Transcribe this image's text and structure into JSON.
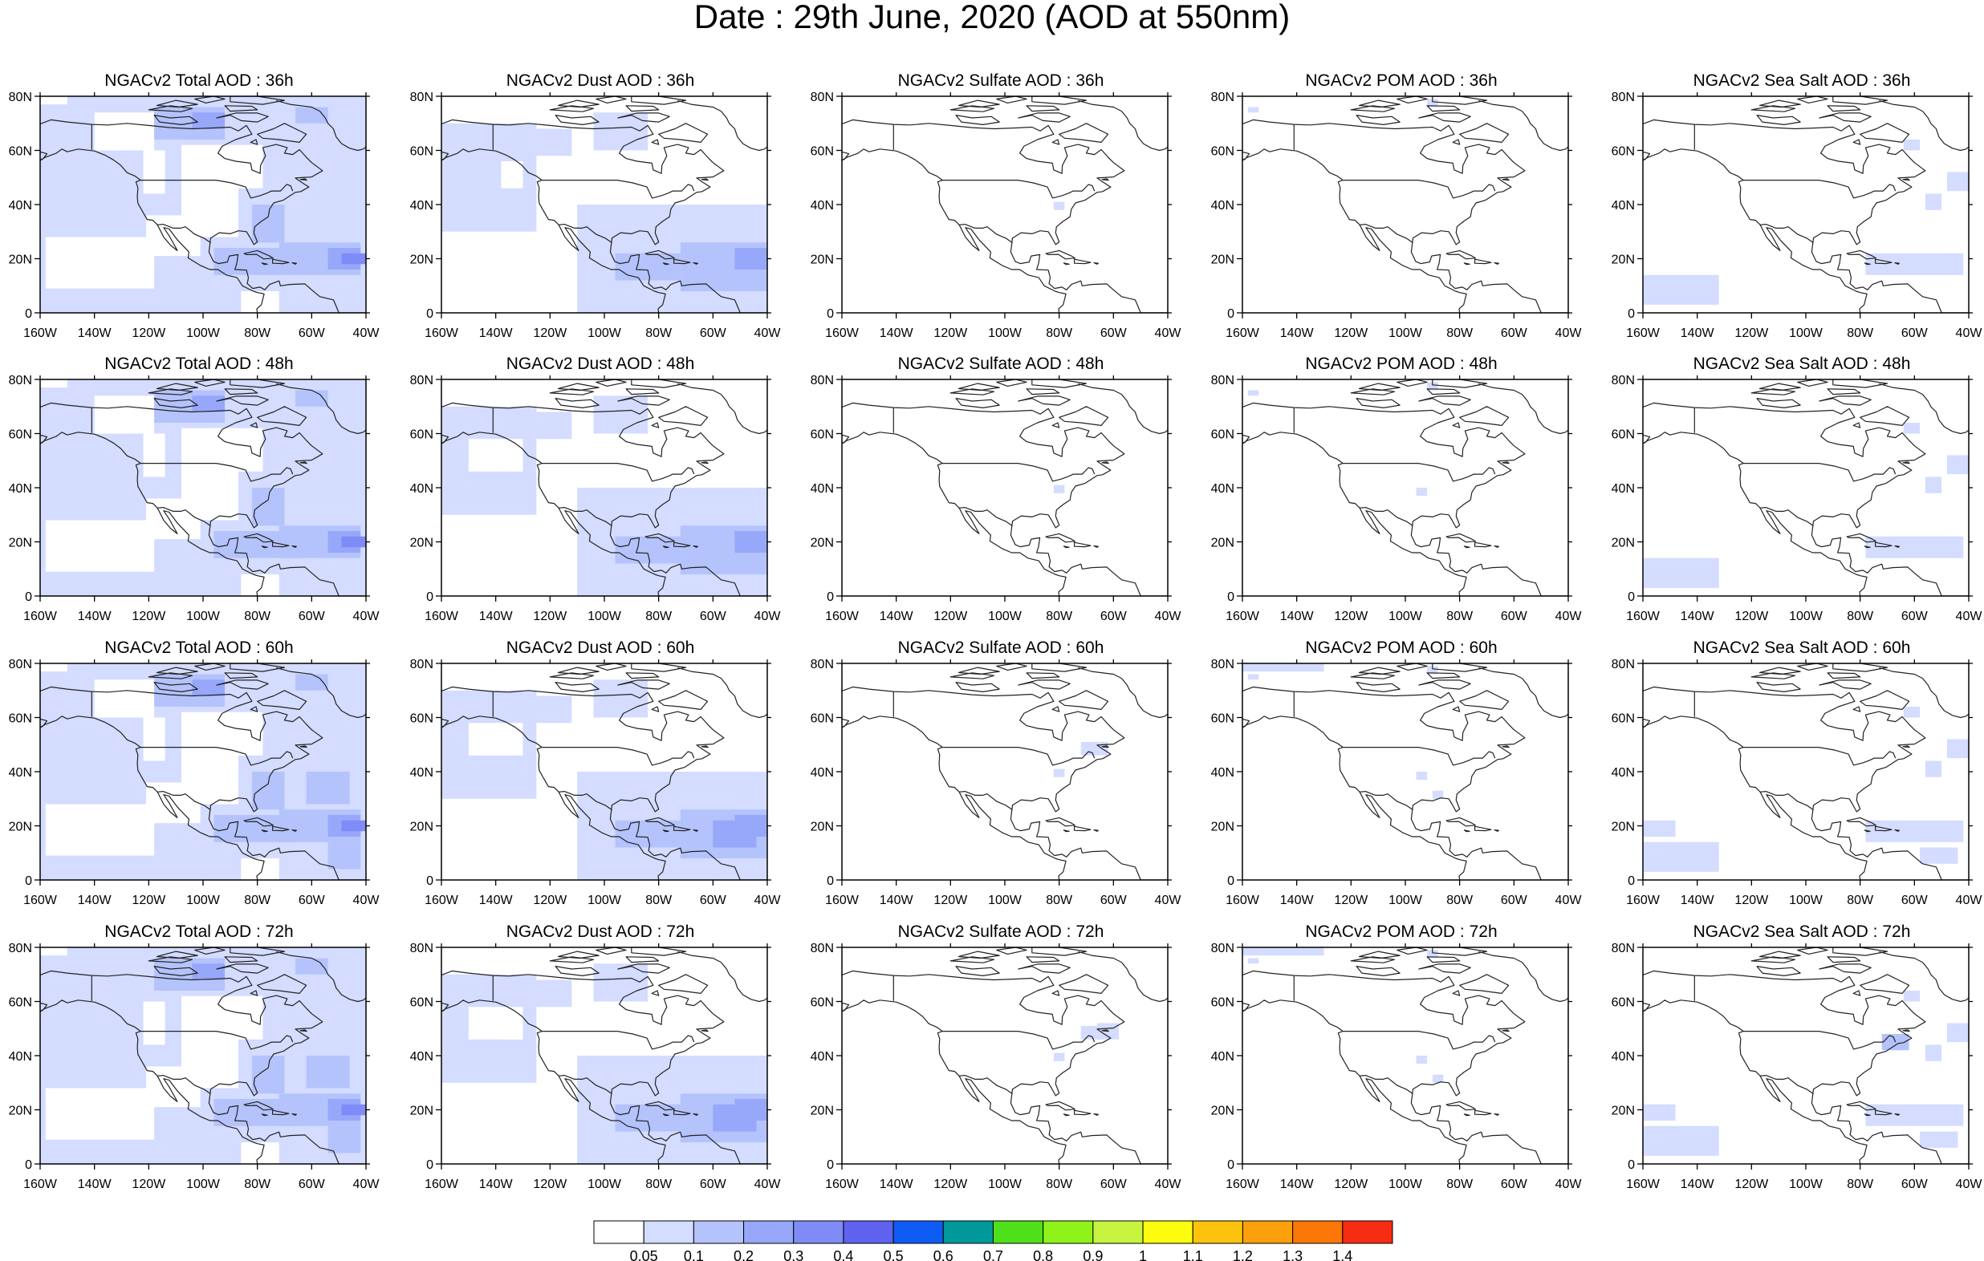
{
  "title": "Date : 29th June, 2020 (AOD at 550nm)",
  "axes": {
    "lon_labels": [
      "160W",
      "140W",
      "120W",
      "100W",
      "80W",
      "60W",
      "40W"
    ],
    "lat_labels": [
      "0",
      "20N",
      "40N",
      "60N",
      "80N"
    ],
    "lon_range": [
      -160,
      -40
    ],
    "lat_range": [
      0,
      80
    ]
  },
  "panels": [
    {
      "title": "NGACv2 Total AOD : 36h",
      "species": "total"
    },
    {
      "title": "NGACv2 Dust AOD : 36h",
      "species": "dust"
    },
    {
      "title": "NGACv2 Sulfate AOD : 36h",
      "species": "sulfate"
    },
    {
      "title": "NGACv2 POM AOD : 36h",
      "species": "pom"
    },
    {
      "title": "NGACv2 Sea Salt AOD : 36h",
      "species": "seasalt"
    },
    {
      "title": "NGACv2 Total AOD : 48h",
      "species": "total"
    },
    {
      "title": "NGACv2 Dust AOD : 48h",
      "species": "dust"
    },
    {
      "title": "NGACv2 Sulfate AOD : 48h",
      "species": "sulfate"
    },
    {
      "title": "NGACv2 POM AOD : 48h",
      "species": "pom"
    },
    {
      "title": "NGACv2 Sea Salt AOD : 48h",
      "species": "seasalt"
    },
    {
      "title": "NGACv2 Total AOD : 60h",
      "species": "total"
    },
    {
      "title": "NGACv2 Dust AOD : 60h",
      "species": "dust"
    },
    {
      "title": "NGACv2 Sulfate AOD : 60h",
      "species": "sulfate"
    },
    {
      "title": "NGACv2 POM AOD : 60h",
      "species": "pom"
    },
    {
      "title": "NGACv2 Sea Salt AOD : 60h",
      "species": "seasalt"
    },
    {
      "title": "NGACv2 Total AOD : 72h",
      "species": "total"
    },
    {
      "title": "NGACv2 Dust AOD : 72h",
      "species": "dust"
    },
    {
      "title": "NGACv2 Sulfate AOD : 72h",
      "species": "sulfate"
    },
    {
      "title": "NGACv2 POM AOD : 72h",
      "species": "pom"
    },
    {
      "title": "NGACv2 Sea Salt  AOD : 72h",
      "species": "seasalt"
    }
  ],
  "colorbar": {
    "levels": [
      "0.05",
      "0.1",
      "0.2",
      "0.3",
      "0.4",
      "0.5",
      "0.6",
      "0.7",
      "0.8",
      "0.9",
      "1",
      "1.1",
      "1.2",
      "1.3",
      "1.4"
    ],
    "colors": [
      "#ffffff",
      "#d4dcff",
      "#b4c3fc",
      "#97a7fa",
      "#7f8bf7",
      "#5e62ee",
      "#0f5cf5",
      "#00989a",
      "#4fe01b",
      "#8ff219",
      "#c6f43f",
      "#fcfc0e",
      "#fcc20c",
      "#fca10b",
      "#fb7708",
      "#f62d13"
    ]
  }
}
